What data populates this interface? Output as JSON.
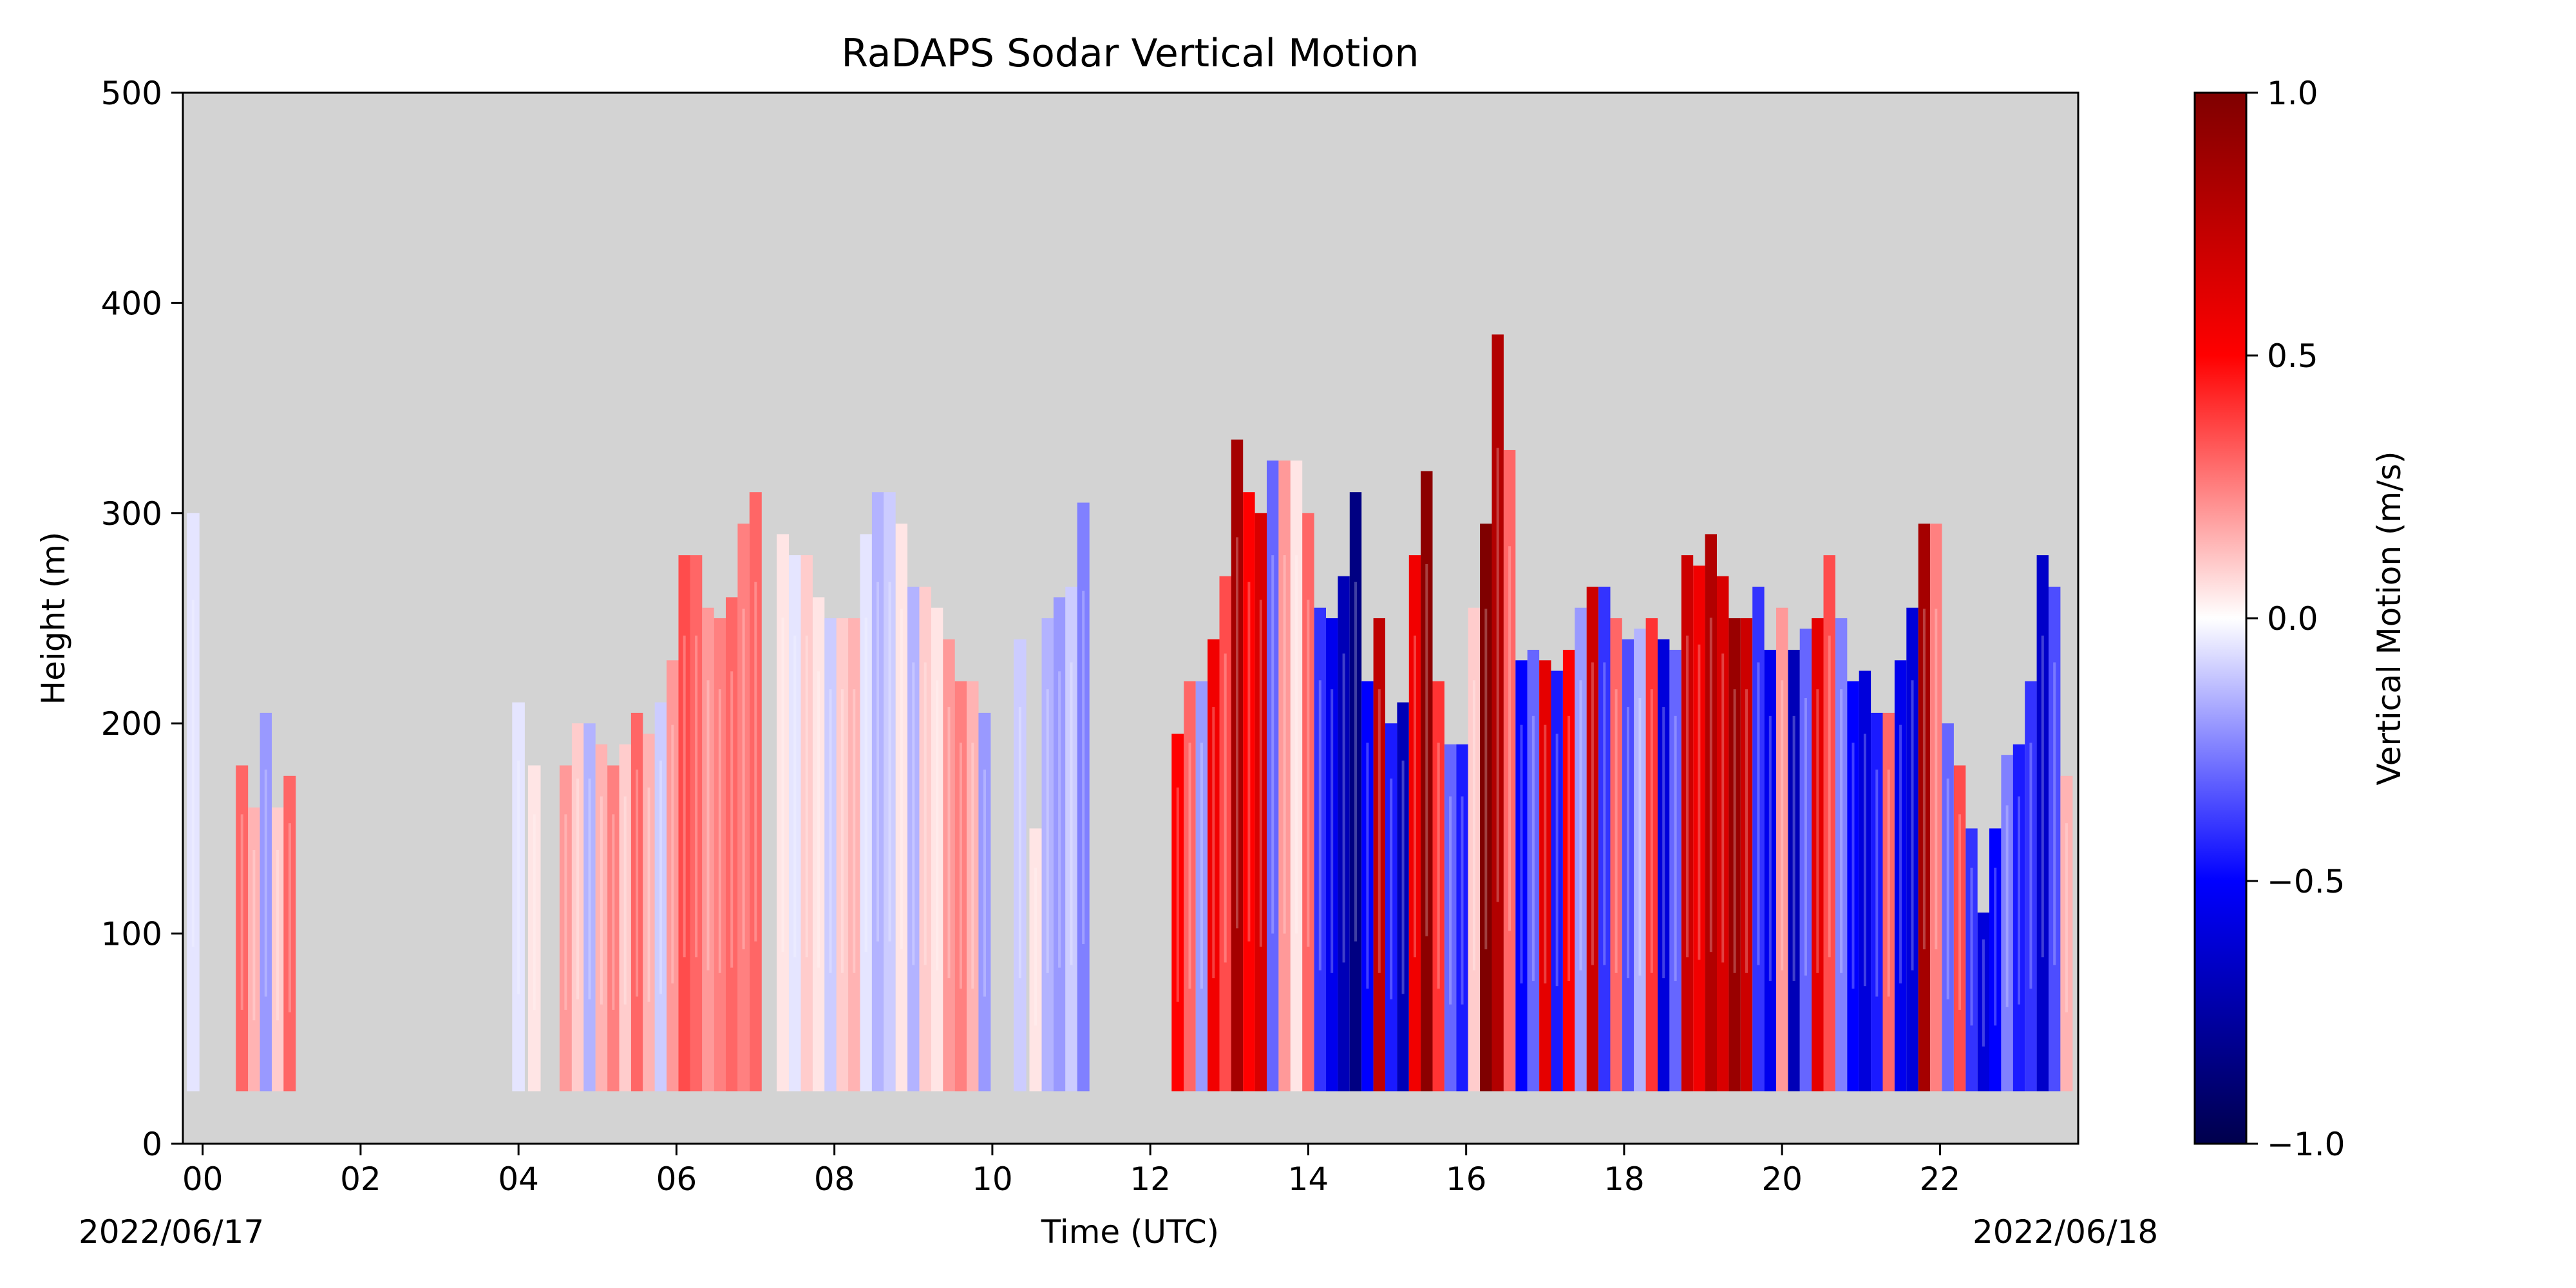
{
  "chart_data": {
    "type": "heatmap",
    "title": "RaDAPS Sodar Vertical Motion",
    "xlabel": "Time (UTC)",
    "ylabel": "Height (m)",
    "xlim": [
      -0.25,
      23.75
    ],
    "ylim": [
      0,
      500
    ],
    "x_ticks": [
      0,
      2,
      4,
      6,
      8,
      10,
      12,
      14,
      16,
      18,
      20,
      22
    ],
    "x_tick_labels": [
      "00",
      "02",
      "04",
      "06",
      "08",
      "10",
      "12",
      "14",
      "16",
      "18",
      "20",
      "22"
    ],
    "y_ticks": [
      0,
      100,
      200,
      300,
      400,
      500
    ],
    "y_tick_labels": [
      "0",
      "100",
      "200",
      "300",
      "400",
      "500"
    ],
    "date_start_label": "2022/06/17",
    "date_end_label": "2022/06/18",
    "background_color": "#d3d3d3",
    "grid": false,
    "colorbar": {
      "label": "Vertical Motion (m/s)",
      "range": [
        -1.0,
        1.0
      ],
      "ticks": [
        -1.0,
        -0.5,
        0.0,
        0.5,
        1.0
      ],
      "tick_labels": [
        "−1.0",
        "−0.5",
        "0.0",
        "0.5",
        "1.0"
      ],
      "colormap": "seismic",
      "stops": [
        "#00004c",
        "#0000ff",
        "#ffffff",
        "#ff0000",
        "#7f0000"
      ]
    },
    "columns": [
      {
        "t": -0.12,
        "v": -0.05,
        "top": 300
      },
      {
        "t": 0.5,
        "v": 0.3,
        "top": 180
      },
      {
        "t": 0.65,
        "v": 0.15,
        "top": 160
      },
      {
        "t": 0.8,
        "v": -0.2,
        "top": 205
      },
      {
        "t": 0.95,
        "v": 0.1,
        "top": 160
      },
      {
        "t": 1.1,
        "v": 0.3,
        "top": 175
      },
      {
        "t": 4.0,
        "v": -0.05,
        "top": 210
      },
      {
        "t": 4.2,
        "v": 0.05,
        "top": 180
      },
      {
        "t": 4.6,
        "v": 0.2,
        "top": 180
      },
      {
        "t": 4.75,
        "v": 0.1,
        "top": 200
      },
      {
        "t": 4.9,
        "v": -0.15,
        "top": 200
      },
      {
        "t": 5.05,
        "v": 0.15,
        "top": 190
      },
      {
        "t": 5.2,
        "v": 0.25,
        "top": 180
      },
      {
        "t": 5.35,
        "v": 0.1,
        "top": 190
      },
      {
        "t": 5.5,
        "v": 0.3,
        "top": 205
      },
      {
        "t": 5.65,
        "v": 0.15,
        "top": 195
      },
      {
        "t": 5.8,
        "v": -0.1,
        "top": 210
      },
      {
        "t": 5.95,
        "v": 0.2,
        "top": 230
      },
      {
        "t": 6.1,
        "v": 0.35,
        "top": 280
      },
      {
        "t": 6.25,
        "v": 0.3,
        "top": 280
      },
      {
        "t": 6.4,
        "v": 0.2,
        "top": 255
      },
      {
        "t": 6.55,
        "v": 0.25,
        "top": 250
      },
      {
        "t": 6.7,
        "v": 0.3,
        "top": 260
      },
      {
        "t": 6.85,
        "v": 0.25,
        "top": 295
      },
      {
        "t": 7.0,
        "v": 0.3,
        "top": 310
      },
      {
        "t": 7.35,
        "v": 0.05,
        "top": 290
      },
      {
        "t": 7.5,
        "v": -0.05,
        "top": 280
      },
      {
        "t": 7.65,
        "v": 0.1,
        "top": 280
      },
      {
        "t": 7.8,
        "v": 0.05,
        "top": 260
      },
      {
        "t": 7.95,
        "v": -0.1,
        "top": 250
      },
      {
        "t": 8.1,
        "v": 0.1,
        "top": 250
      },
      {
        "t": 8.25,
        "v": 0.15,
        "top": 250
      },
      {
        "t": 8.4,
        "v": -0.05,
        "top": 290
      },
      {
        "t": 8.55,
        "v": -0.15,
        "top": 310
      },
      {
        "t": 8.7,
        "v": -0.1,
        "top": 310
      },
      {
        "t": 8.85,
        "v": 0.05,
        "top": 295
      },
      {
        "t": 9.0,
        "v": -0.15,
        "top": 265
      },
      {
        "t": 9.15,
        "v": 0.1,
        "top": 265
      },
      {
        "t": 9.3,
        "v": 0.05,
        "top": 255
      },
      {
        "t": 9.45,
        "v": 0.2,
        "top": 240
      },
      {
        "t": 9.6,
        "v": 0.25,
        "top": 220
      },
      {
        "t": 9.75,
        "v": 0.15,
        "top": 220
      },
      {
        "t": 9.9,
        "v": -0.2,
        "top": 205
      },
      {
        "t": 10.35,
        "v": -0.1,
        "top": 240
      },
      {
        "t": 10.55,
        "v": 0.05,
        "top": 150
      },
      {
        "t": 10.7,
        "v": -0.15,
        "top": 250
      },
      {
        "t": 10.85,
        "v": -0.2,
        "top": 260
      },
      {
        "t": 11.0,
        "v": -0.1,
        "top": 265
      },
      {
        "t": 11.15,
        "v": -0.25,
        "top": 305
      },
      {
        "t": 12.35,
        "v": 0.5,
        "top": 195
      },
      {
        "t": 12.5,
        "v": 0.3,
        "top": 220
      },
      {
        "t": 12.65,
        "v": -0.2,
        "top": 220
      },
      {
        "t": 12.8,
        "v": 0.55,
        "top": 240
      },
      {
        "t": 12.95,
        "v": 0.35,
        "top": 270
      },
      {
        "t": 13.1,
        "v": 0.85,
        "top": 335
      },
      {
        "t": 13.25,
        "v": 0.5,
        "top": 310
      },
      {
        "t": 13.4,
        "v": 0.65,
        "top": 300
      },
      {
        "t": 13.55,
        "v": -0.3,
        "top": 325
      },
      {
        "t": 13.7,
        "v": 0.2,
        "top": 325
      },
      {
        "t": 13.85,
        "v": 0.05,
        "top": 325
      },
      {
        "t": 14.0,
        "v": 0.3,
        "top": 300
      },
      {
        "t": 14.15,
        "v": -0.4,
        "top": 255
      },
      {
        "t": 14.3,
        "v": -0.55,
        "top": 250
      },
      {
        "t": 14.45,
        "v": -0.7,
        "top": 270
      },
      {
        "t": 14.6,
        "v": -0.85,
        "top": 310
      },
      {
        "t": 14.75,
        "v": -0.5,
        "top": 220
      },
      {
        "t": 14.9,
        "v": 0.75,
        "top": 250
      },
      {
        "t": 15.05,
        "v": -0.45,
        "top": 200
      },
      {
        "t": 15.2,
        "v": -0.7,
        "top": 210
      },
      {
        "t": 15.35,
        "v": 0.55,
        "top": 280
      },
      {
        "t": 15.5,
        "v": 0.95,
        "top": 320
      },
      {
        "t": 15.65,
        "v": 0.4,
        "top": 220
      },
      {
        "t": 15.8,
        "v": -0.3,
        "top": 190
      },
      {
        "t": 15.95,
        "v": -0.45,
        "top": 190
      },
      {
        "t": 16.1,
        "v": 0.1,
        "top": 255
      },
      {
        "t": 16.25,
        "v": 1.0,
        "top": 295
      },
      {
        "t": 16.4,
        "v": 0.8,
        "top": 385
      },
      {
        "t": 16.55,
        "v": 0.3,
        "top": 330
      },
      {
        "t": 16.7,
        "v": -0.5,
        "top": 230
      },
      {
        "t": 16.85,
        "v": -0.3,
        "top": 235
      },
      {
        "t": 17.0,
        "v": 0.6,
        "top": 230
      },
      {
        "t": 17.15,
        "v": -0.45,
        "top": 225
      },
      {
        "t": 17.3,
        "v": 0.5,
        "top": 235
      },
      {
        "t": 17.45,
        "v": -0.2,
        "top": 255
      },
      {
        "t": 17.6,
        "v": 0.7,
        "top": 265
      },
      {
        "t": 17.75,
        "v": -0.4,
        "top": 265
      },
      {
        "t": 17.9,
        "v": 0.3,
        "top": 250
      },
      {
        "t": 18.05,
        "v": -0.35,
        "top": 240
      },
      {
        "t": 18.2,
        "v": -0.15,
        "top": 245
      },
      {
        "t": 18.35,
        "v": 0.4,
        "top": 250
      },
      {
        "t": 18.5,
        "v": -0.6,
        "top": 240
      },
      {
        "t": 18.65,
        "v": -0.3,
        "top": 235
      },
      {
        "t": 18.8,
        "v": 0.7,
        "top": 280
      },
      {
        "t": 18.95,
        "v": 0.55,
        "top": 275
      },
      {
        "t": 19.1,
        "v": 0.8,
        "top": 290
      },
      {
        "t": 19.25,
        "v": 0.65,
        "top": 270
      },
      {
        "t": 19.4,
        "v": 0.9,
        "top": 250
      },
      {
        "t": 19.55,
        "v": 0.7,
        "top": 250
      },
      {
        "t": 19.7,
        "v": -0.4,
        "top": 265
      },
      {
        "t": 19.85,
        "v": -0.55,
        "top": 235
      },
      {
        "t": 20.0,
        "v": 0.2,
        "top": 255
      },
      {
        "t": 20.15,
        "v": -0.7,
        "top": 235
      },
      {
        "t": 20.3,
        "v": -0.3,
        "top": 245
      },
      {
        "t": 20.45,
        "v": 0.6,
        "top": 250
      },
      {
        "t": 20.6,
        "v": 0.35,
        "top": 280
      },
      {
        "t": 20.75,
        "v": -0.25,
        "top": 250
      },
      {
        "t": 20.9,
        "v": -0.5,
        "top": 220
      },
      {
        "t": 21.05,
        "v": -0.6,
        "top": 225
      },
      {
        "t": 21.2,
        "v": -0.45,
        "top": 205
      },
      {
        "t": 21.35,
        "v": 0.3,
        "top": 205
      },
      {
        "t": 21.5,
        "v": -0.55,
        "top": 230
      },
      {
        "t": 21.65,
        "v": -0.6,
        "top": 255
      },
      {
        "t": 21.8,
        "v": 0.85,
        "top": 295
      },
      {
        "t": 21.95,
        "v": 0.25,
        "top": 295
      },
      {
        "t": 22.1,
        "v": -0.3,
        "top": 200
      },
      {
        "t": 22.25,
        "v": 0.35,
        "top": 180
      },
      {
        "t": 22.4,
        "v": -0.4,
        "top": 150
      },
      {
        "t": 22.55,
        "v": -0.6,
        "top": 110
      },
      {
        "t": 22.7,
        "v": -0.5,
        "top": 150
      },
      {
        "t": 22.85,
        "v": -0.25,
        "top": 185
      },
      {
        "t": 23.0,
        "v": -0.45,
        "top": 190
      },
      {
        "t": 23.15,
        "v": -0.4,
        "top": 220
      },
      {
        "t": 23.3,
        "v": -0.65,
        "top": 280
      },
      {
        "t": 23.45,
        "v": -0.35,
        "top": 265
      },
      {
        "t": 23.6,
        "v": 0.15,
        "top": 175
      }
    ],
    "columns_bottom": 25
  }
}
